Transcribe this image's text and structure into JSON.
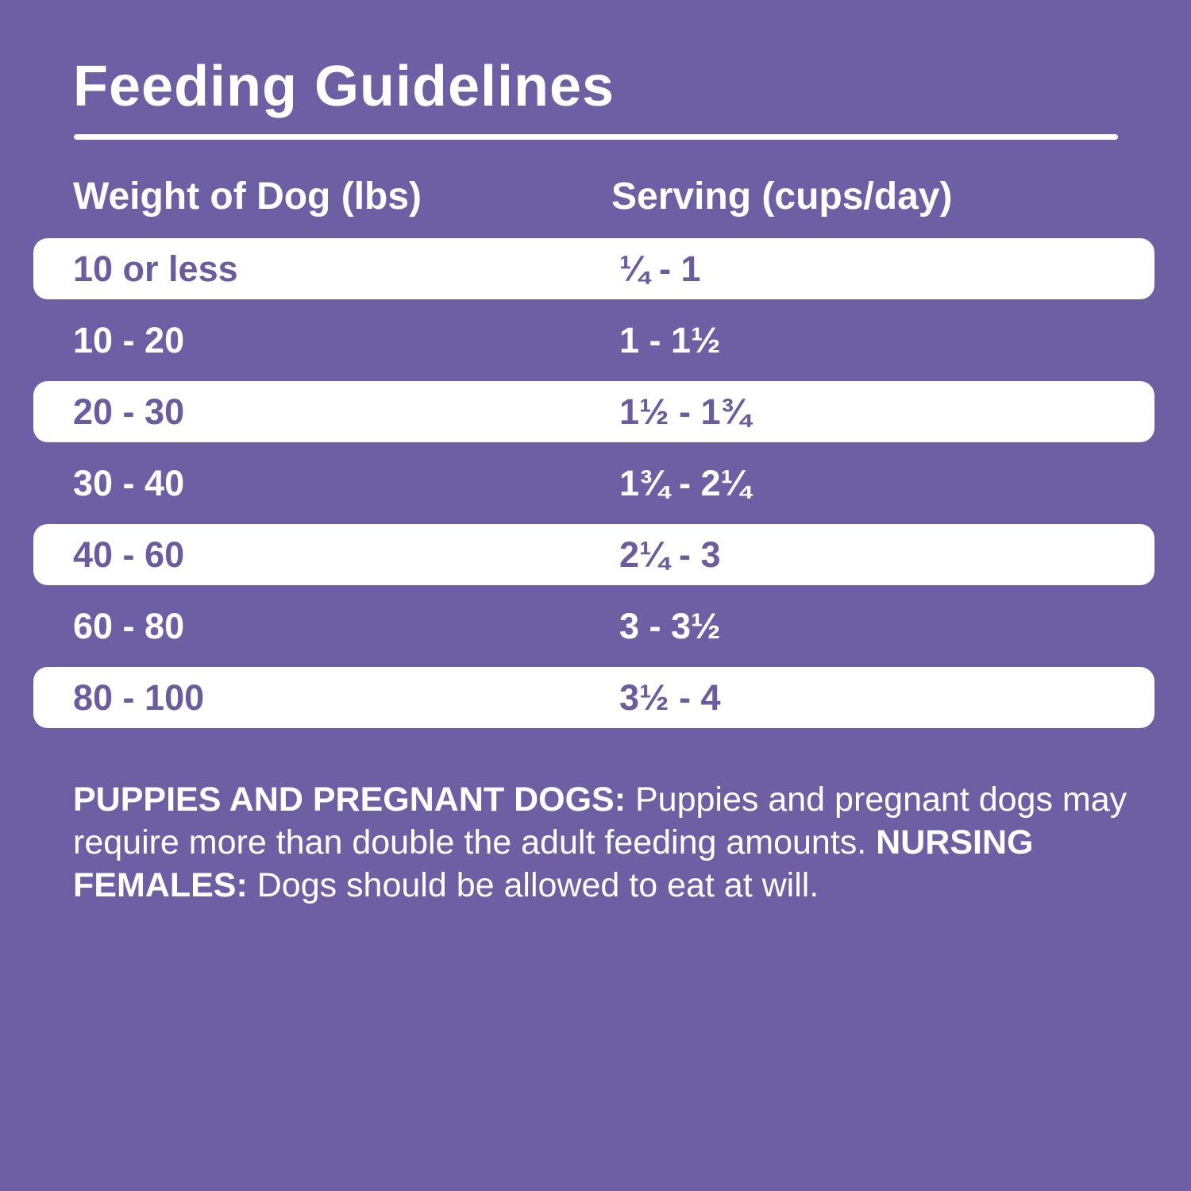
{
  "title": "Feeding Guidelines",
  "table": {
    "headers": {
      "weight": "Weight of Dog (lbs)",
      "serving": "Serving (cups/day)"
    },
    "rows": [
      {
        "weight": "10 or less",
        "serving": "¼ - 1"
      },
      {
        "weight": "10 - 20",
        "serving": "1 - 1½"
      },
      {
        "weight": "20 - 30",
        "serving": "1½ - 1¾"
      },
      {
        "weight": "30 - 40",
        "serving": "1¾ - 2¼"
      },
      {
        "weight": "40 - 60",
        "serving": "2¼ - 3"
      },
      {
        "weight": "60 - 80",
        "serving": "3 - 3½"
      },
      {
        "weight": "80 - 100",
        "serving": "3½ - 4"
      }
    ]
  },
  "note": {
    "segments": [
      {
        "style": "bold",
        "text": "PUPPIES AND PREGNANT DOGS:"
      },
      {
        "style": "regular",
        "text": " Puppies and pregnant dogs may require more than double the adult feeding amounts. "
      },
      {
        "style": "bold",
        "text": "NURSING FEMALES:"
      },
      {
        "style": "regular",
        "text": " Dogs should be allowed to eat at will."
      }
    ]
  },
  "colors": {
    "background": "#6E5FA4",
    "row_band": "#FFFFFF",
    "text_on_purple": "#FFFFFF",
    "text_on_white": "#6A5C9E"
  }
}
